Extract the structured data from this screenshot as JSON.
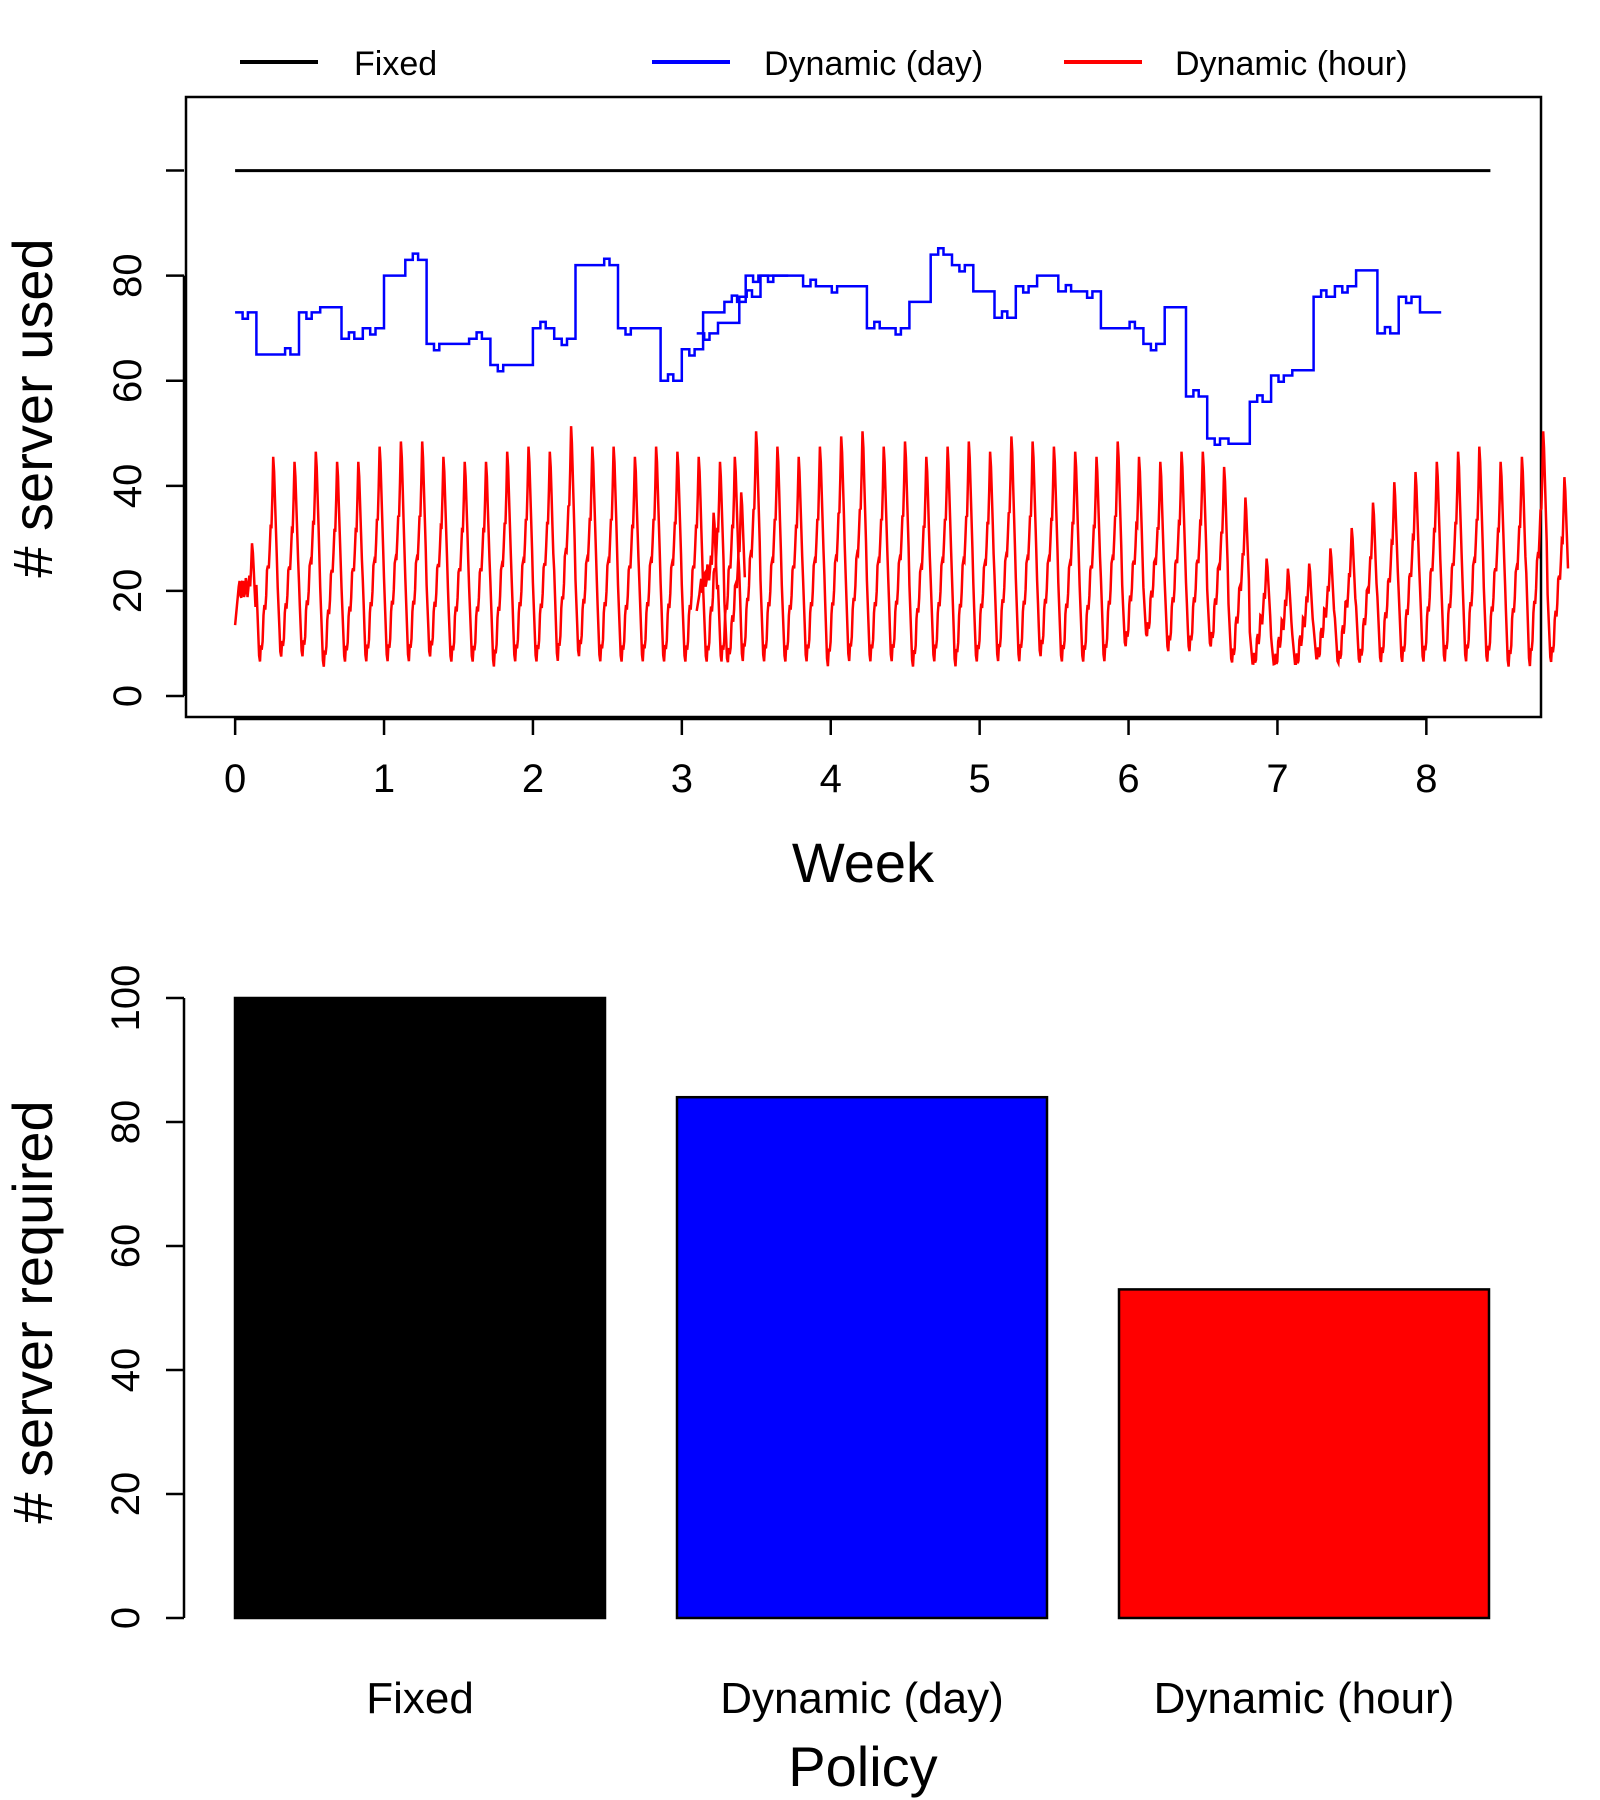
{
  "chart_data": [
    {
      "type": "line",
      "title": "",
      "xlabel": "Week",
      "ylabel": "# server used",
      "xlim": [
        -0.33,
        8.77
      ],
      "ylim": [
        -4,
        114
      ],
      "x_ticks": [
        "0",
        "1",
        "2",
        "3",
        "4",
        "5",
        "6",
        "7",
        "8"
      ],
      "y_ticks": [
        "0",
        "20",
        "40",
        "60",
        "80"
      ],
      "legend": {
        "position": "top",
        "orientation": "horizontal"
      },
      "series": [
        {
          "name": "Fixed",
          "color": "#000000",
          "description": "constant allocation",
          "segments": [
            [
              [
                0,
                100
              ],
              [
                8.43,
                100
              ]
            ]
          ]
        },
        {
          "name": "Dynamic (day)",
          "color": "#0000ff",
          "daily_levels": [
            [
              73,
              65,
              65,
              73,
              74,
              68,
              70,
              80,
              83,
              67,
              67,
              68,
              63,
              63,
              70,
              68,
              82,
              82,
              70,
              70,
              60,
              66,
              73,
              75,
              80,
              80
            ],
            [
              69,
              71,
              76,
              80,
              80,
              78,
              78,
              78,
              70,
              70,
              75,
              84,
              82,
              77,
              72,
              78,
              80,
              77,
              77,
              70,
              70,
              67,
              74,
              57,
              49,
              48,
              56,
              61,
              62,
              76,
              78,
              81,
              69,
              76,
              73
            ]
          ]
        },
        {
          "name": "Dynamic (hour)",
          "color": "#ff0000",
          "daily_peaks": [
            [
              30,
              47,
              46,
              48,
              46,
              46,
              49,
              50,
              50,
              47,
              46,
              46,
              48,
              49,
              48,
              53,
              49,
              49,
              47,
              49,
              48,
              47,
              46,
              40
            ],
            [
              36,
              47,
              52,
              49,
              47,
              49,
              51,
              52,
              49,
              50,
              47,
              49,
              50,
              48,
              51,
              50,
              49,
              48,
              47,
              50,
              47,
              46,
              48,
              48,
              45,
              39,
              27,
              25,
              26,
              29,
              33,
              38,
              42,
              44,
              46,
              48,
              49,
              46,
              47,
              52,
              43
            ]
          ],
          "daily_troughs": [
            [
              20,
              5,
              6,
              6,
              4,
              5,
              5,
              5,
              5,
              6,
              5,
              5,
              4,
              5,
              5,
              5,
              6,
              5,
              5,
              5,
              5,
              5,
              5,
              5
            ],
            [
              20,
              5,
              5,
              5,
              5,
              5,
              4,
              5,
              5,
              5,
              4,
              5,
              4,
              5,
              5,
              5,
              6,
              5,
              5,
              5,
              8,
              10,
              7,
              7,
              8,
              5,
              5,
              5,
              5,
              6,
              5,
              5,
              5,
              5,
              5,
              5,
              5,
              5,
              4,
              4,
              5
            ]
          ]
        }
      ]
    },
    {
      "type": "bar",
      "title": "",
      "xlabel": "Policy",
      "ylabel": "# server required",
      "categories": [
        "Fixed",
        "Dynamic (day)",
        "Dynamic (hour)"
      ],
      "values": [
        100,
        84,
        53
      ],
      "colors": [
        "#000000",
        "#0000ff",
        "#ff0000"
      ],
      "ylim": [
        0,
        100
      ],
      "y_ticks": [
        "0",
        "20",
        "40",
        "60",
        "80",
        "100"
      ]
    }
  ]
}
